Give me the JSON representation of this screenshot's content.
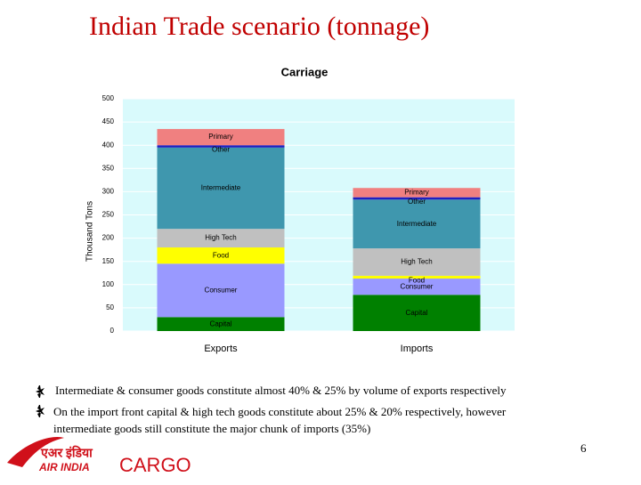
{
  "slide": {
    "title": "Indian Trade scenario (tonnage)",
    "bullets": [
      "Intermediate & consumer goods constitute almost 40% & 25% by volume of exports respectively",
      "On the import front capital & high tech goods constitute about 25% & 20% respectively, however intermediate goods still constitute the major chunk of imports (35%)"
    ],
    "page_number": "6",
    "logo": {
      "hindi": "एअर इंडिया",
      "name": "AIR INDIA",
      "product": "CARGO"
    }
  },
  "chart_data": {
    "type": "stacked_bar",
    "title": "Carriage",
    "y_label": "Thousand Tons",
    "categories": [
      "Exports",
      "Imports"
    ],
    "series": [
      {
        "name": "Capital",
        "color": "#008000",
        "values": [
          30,
          78
        ]
      },
      {
        "name": "Consumer",
        "color": "#9999ff",
        "values": [
          115,
          35
        ]
      },
      {
        "name": "Food",
        "color": "#ffff00",
        "values": [
          35,
          6
        ]
      },
      {
        "name": "High Tech",
        "color": "#c0c0c0",
        "values": [
          40,
          59
        ]
      },
      {
        "name": "Intermediate",
        "color": "#3f97ae",
        "values": [
          175,
          105
        ]
      },
      {
        "name": "Other",
        "color": "#1f1fbf",
        "values": [
          5,
          5
        ]
      },
      {
        "name": "Primary",
        "color": "#f08080",
        "values": [
          35,
          20
        ]
      }
    ],
    "ylim": [
      0,
      500
    ],
    "yticks": [
      0,
      50,
      100,
      150,
      200,
      250,
      300,
      350,
      400,
      450,
      500
    ],
    "grid": true,
    "plot_background": "#d9fafc"
  }
}
